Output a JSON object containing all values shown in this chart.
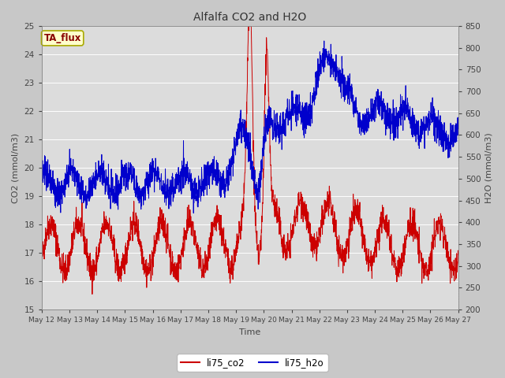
{
  "title": "Alfalfa CO2 and H2O",
  "xlabel": "Time",
  "ylabel_left": "CO2 (mmol/m3)",
  "ylabel_right": "H2O (mmol/m3)",
  "legend_label": "TA_flux",
  "series1_label": "li75_co2",
  "series2_label": "li75_h2o",
  "ylim_left": [
    15.0,
    25.0
  ],
  "ylim_right": [
    200,
    850
  ],
  "yticks_left": [
    15.0,
    16.0,
    17.0,
    18.0,
    19.0,
    20.0,
    21.0,
    22.0,
    23.0,
    24.0,
    25.0
  ],
  "yticks_right": [
    200,
    250,
    300,
    350,
    400,
    450,
    500,
    550,
    600,
    650,
    700,
    750,
    800,
    850
  ],
  "xtick_labels": [
    "May 12",
    "May 13",
    "May 14",
    "May 15",
    "May 16",
    "May 17",
    "May 18",
    "May 19",
    "May 20",
    "May 21",
    "May 22",
    "May 23",
    "May 24",
    "May 25",
    "May 26",
    "May 27"
  ],
  "color_co2": "#cc0000",
  "color_h2o": "#0000cc",
  "fig_bg_color": "#c8c8c8",
  "plot_bg": "#dcdcdc",
  "legend_box_facecolor": "#ffffcc",
  "legend_box_edgecolor": "#aaaa00",
  "legend_text_color": "#880000",
  "grid_color": "#ffffff",
  "axis_label_color": "#444444",
  "tick_label_color": "#444444",
  "title_color": "#333333"
}
